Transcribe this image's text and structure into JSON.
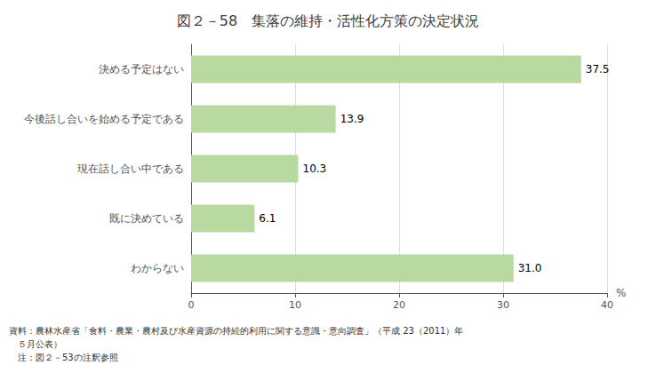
{
  "chart_data": {
    "type": "bar",
    "orientation": "horizontal",
    "title": "図２－58　集落の維持・活性化方策の決定状況",
    "categories": [
      "わからない",
      "既に決めている",
      "現在話し合い中である",
      "今後話し合いを始める予定である",
      "決める予定はない"
    ],
    "values": [
      31.0,
      6.1,
      10.3,
      13.9,
      37.5
    ],
    "value_labels": [
      "31.0",
      "6.1",
      "10.3",
      "13.9",
      "37.5"
    ],
    "data_labels": true,
    "color": "#b8d9a0",
    "xlabel": "%",
    "xlim": [
      0,
      40
    ],
    "xticks": [
      0,
      10,
      20,
      30,
      40
    ],
    "grid": true,
    "annotations": [
      "資料：農林水産省「食料・農業・農村及び水産資源の持続的利用に関する意識・意向調査」（平成 23（2011）年",
      "　５月公表）",
      "　注：図２－53の注釈参照"
    ]
  }
}
